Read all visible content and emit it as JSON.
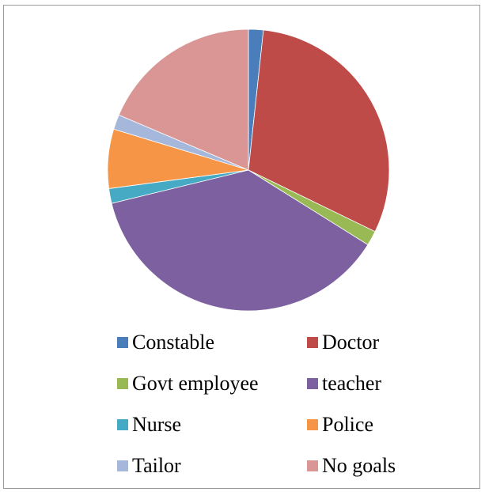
{
  "chart_data": {
    "type": "pie",
    "title": "",
    "start_angle_deg": 0,
    "direction": "clockwise",
    "legend_position": "bottom",
    "series": [
      {
        "name": "Constable",
        "value": 1.7,
        "color": "#4a7ebb"
      },
      {
        "name": "Doctor",
        "value": 30.5,
        "color": "#be4b48"
      },
      {
        "name": "Govt employee",
        "value": 1.7,
        "color": "#98b954"
      },
      {
        "name": "teacher",
        "value": 37.3,
        "color": "#7d60a0"
      },
      {
        "name": "Nurse",
        "value": 1.7,
        "color": "#46aac4"
      },
      {
        "name": "Police",
        "value": 6.8,
        "color": "#f69546"
      },
      {
        "name": "Tailor",
        "value": 1.7,
        "color": "#a5b8dc"
      },
      {
        "name": "No goals",
        "value": 18.6,
        "color": "#d99694"
      }
    ]
  }
}
